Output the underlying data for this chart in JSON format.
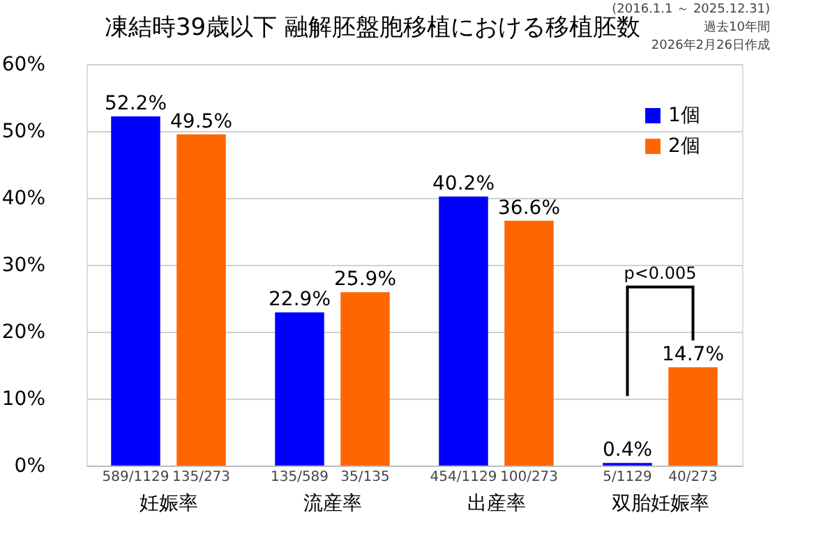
{
  "chart_data": {
    "type": "bar",
    "title": "凍結時39歳以下  融解胚盤胞移植における移植胚数",
    "categories": [
      "妊娠率",
      "流産率",
      "出産率",
      "双胎妊娠率"
    ],
    "series": [
      {
        "name": "1個",
        "color": "#0000ff",
        "values": [
          52.2,
          22.9,
          40.2,
          0.4
        ],
        "value_labels": [
          "52.2%",
          "22.9%",
          "40.2%",
          "0.4%"
        ]
      },
      {
        "name": "2個",
        "color": "#ff6600",
        "values": [
          49.5,
          25.9,
          36.6,
          14.7
        ],
        "value_labels": [
          "49.5%",
          "25.9%",
          "36.6%",
          "14.7%"
        ]
      }
    ],
    "ylim": [
      0,
      60
    ],
    "yticks": [
      {
        "value": 0,
        "label": "0%"
      },
      {
        "value": 10,
        "label": "10%"
      },
      {
        "value": 20,
        "label": "20%"
      },
      {
        "value": 30,
        "label": "30%"
      },
      {
        "value": 40,
        "label": "40%"
      },
      {
        "value": 50,
        "label": "50%"
      },
      {
        "value": 60,
        "label": "60%"
      }
    ],
    "grid": "y",
    "legend": "top right",
    "annotations": [
      "(2016.1.1 ～ 2025.12.31)",
      "過去10年間",
      "2026年2月26日作成",
      "p<0.005",
      "589/1129",
      "135/273",
      "135/589",
      "35/135",
      "454/1129",
      "100/273",
      "5/1129",
      "40/273"
    ]
  }
}
